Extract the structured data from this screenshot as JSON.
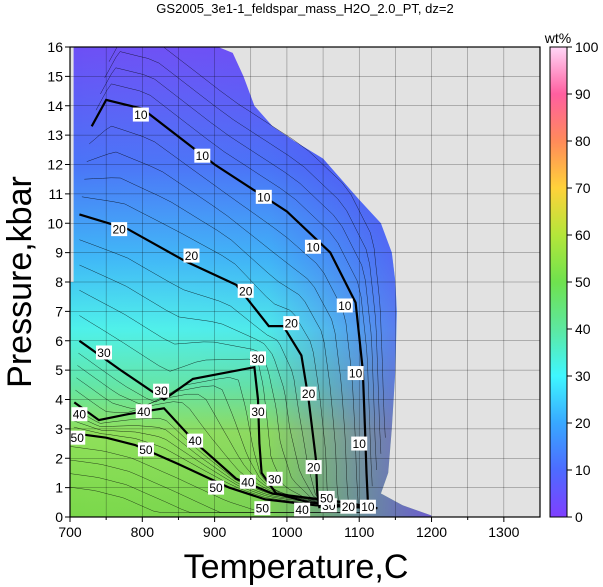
{
  "chart_data": {
    "type": "heatmap",
    "title": "GS2005_3e1-1_feldspar_mass_H2O_2.0_PT, dz=2",
    "xlabel": "Temperature,C",
    "ylabel": "Pressure,kbar",
    "xlim": [
      700,
      1350
    ],
    "ylim": [
      0,
      16
    ],
    "x_ticks": [
      700,
      800,
      900,
      1000,
      1100,
      1200,
      1300
    ],
    "y_ticks": [
      0,
      1,
      2,
      3,
      4,
      5,
      6,
      7,
      8,
      9,
      10,
      11,
      12,
      13,
      14,
      15,
      16
    ],
    "grid": true,
    "colorbar": {
      "label": "wt%",
      "range": [
        0,
        100
      ],
      "ticks": [
        0,
        10,
        20,
        30,
        40,
        50,
        60,
        70,
        80,
        90,
        100
      ],
      "placement": "right"
    },
    "contour_interval": 2,
    "labeled_contours": [
      {
        "level": 10,
        "label": "10",
        "points": [
          [
            730,
            13.3
          ],
          [
            750,
            14.2
          ],
          [
            800,
            13.9
          ],
          [
            900,
            12.0
          ],
          [
            1000,
            10.4
          ],
          [
            1060,
            9.0
          ],
          [
            1095,
            7.3
          ],
          [
            1105,
            5.0
          ],
          [
            1108,
            3.0
          ],
          [
            1110,
            1.5
          ],
          [
            1112,
            0.5
          ]
        ]
      },
      {
        "level": 20,
        "label": "20",
        "points": [
          [
            713,
            10.3
          ],
          [
            780,
            9.8
          ],
          [
            860,
            8.7
          ],
          [
            930,
            7.9
          ],
          [
            975,
            6.5
          ],
          [
            995,
            6.5
          ],
          [
            1020,
            5.5
          ],
          [
            1030,
            4.0
          ],
          [
            1040,
            2.0
          ],
          [
            1042,
            0.8
          ],
          [
            1045,
            0.3
          ]
        ]
      },
      {
        "level": 30,
        "label": "30",
        "points": [
          [
            713,
            6.0
          ],
          [
            770,
            5.0
          ],
          [
            830,
            4.0
          ],
          [
            870,
            4.7
          ],
          [
            955,
            5.1
          ],
          [
            960,
            4.0
          ],
          [
            962,
            2.5
          ],
          [
            965,
            1.5
          ],
          [
            985,
            0.8
          ],
          [
            1030,
            0.5
          ],
          [
            1110,
            0.3
          ]
        ]
      },
      {
        "level": 40,
        "label": "40",
        "points": [
          [
            706,
            3.9
          ],
          [
            740,
            3.3
          ],
          [
            780,
            3.5
          ],
          [
            830,
            3.7
          ],
          [
            875,
            2.5
          ],
          [
            930,
            1.3
          ],
          [
            980,
            0.8
          ],
          [
            1080,
            0.5
          ],
          [
            1125,
            0.3
          ]
        ]
      },
      {
        "level": 50,
        "label": "50",
        "points": [
          [
            705,
            2.85
          ],
          [
            750,
            2.7
          ],
          [
            790,
            2.45
          ],
          [
            850,
            1.8
          ],
          [
            920,
            1.0
          ],
          [
            970,
            0.6
          ],
          [
            1040,
            0.4
          ],
          [
            1125,
            0.3
          ]
        ]
      }
    ],
    "contour_label_positions": [
      {
        "label": "10",
        "x": 798,
        "y": 13.7
      },
      {
        "label": "10",
        "x": 883,
        "y": 12.3
      },
      {
        "label": "10",
        "x": 968,
        "y": 10.9
      },
      {
        "label": "10",
        "x": 1036,
        "y": 9.2
      },
      {
        "label": "10",
        "x": 1080,
        "y": 7.2
      },
      {
        "label": "10",
        "x": 1095,
        "y": 4.9
      },
      {
        "label": "10",
        "x": 1100,
        "y": 2.5
      },
      {
        "label": "10",
        "x": 1112,
        "y": 0.35
      },
      {
        "label": "20",
        "x": 768,
        "y": 9.8
      },
      {
        "label": "20",
        "x": 868,
        "y": 8.9
      },
      {
        "label": "20",
        "x": 943,
        "y": 7.7
      },
      {
        "label": "20",
        "x": 1006,
        "y": 6.6
      },
      {
        "label": "20",
        "x": 1030,
        "y": 4.2
      },
      {
        "label": "20",
        "x": 1037,
        "y": 1.7
      },
      {
        "label": "20",
        "x": 1085,
        "y": 0.35
      },
      {
        "label": "30",
        "x": 747,
        "y": 5.6
      },
      {
        "label": "30",
        "x": 826,
        "y": 4.3
      },
      {
        "label": "30",
        "x": 960,
        "y": 5.4
      },
      {
        "label": "30",
        "x": 960,
        "y": 3.6
      },
      {
        "label": "30",
        "x": 983,
        "y": 1.3
      },
      {
        "label": "30",
        "x": 1058,
        "y": 0.4
      },
      {
        "label": "40",
        "x": 713,
        "y": 3.5
      },
      {
        "label": "40",
        "x": 802,
        "y": 3.6
      },
      {
        "label": "40",
        "x": 873,
        "y": 2.6
      },
      {
        "label": "40",
        "x": 946,
        "y": 1.2
      },
      {
        "label": "40",
        "x": 1021,
        "y": 0.25
      },
      {
        "label": "50",
        "x": 710,
        "y": 2.7
      },
      {
        "label": "50",
        "x": 805,
        "y": 2.3
      },
      {
        "label": "50",
        "x": 902,
        "y": 1.0
      },
      {
        "label": "50",
        "x": 966,
        "y": 0.3
      },
      {
        "label": "50",
        "x": 1055,
        "y": 0.65
      }
    ],
    "data_region_boundary": [
      [
        705,
        16
      ],
      [
        850,
        16
      ],
      [
        905,
        16
      ],
      [
        925,
        15.8
      ],
      [
        940,
        15
      ],
      [
        955,
        14
      ],
      [
        980,
        13.3
      ],
      [
        1010,
        12.8
      ],
      [
        1050,
        12.2
      ],
      [
        1075,
        11.5
      ],
      [
        1100,
        10.8
      ],
      [
        1130,
        10.0
      ],
      [
        1145,
        9.0
      ],
      [
        1150,
        8.0
      ],
      [
        1152,
        7.0
      ],
      [
        1150,
        5.0
      ],
      [
        1145,
        3.0
      ],
      [
        1140,
        1.5
      ],
      [
        1130,
        0.8
      ],
      [
        1160,
        0.4
      ],
      [
        1200,
        0.05
      ],
      [
        1200,
        0
      ],
      [
        700,
        0
      ],
      [
        700,
        8
      ],
      [
        705,
        8
      ],
      [
        705,
        16
      ]
    ]
  }
}
